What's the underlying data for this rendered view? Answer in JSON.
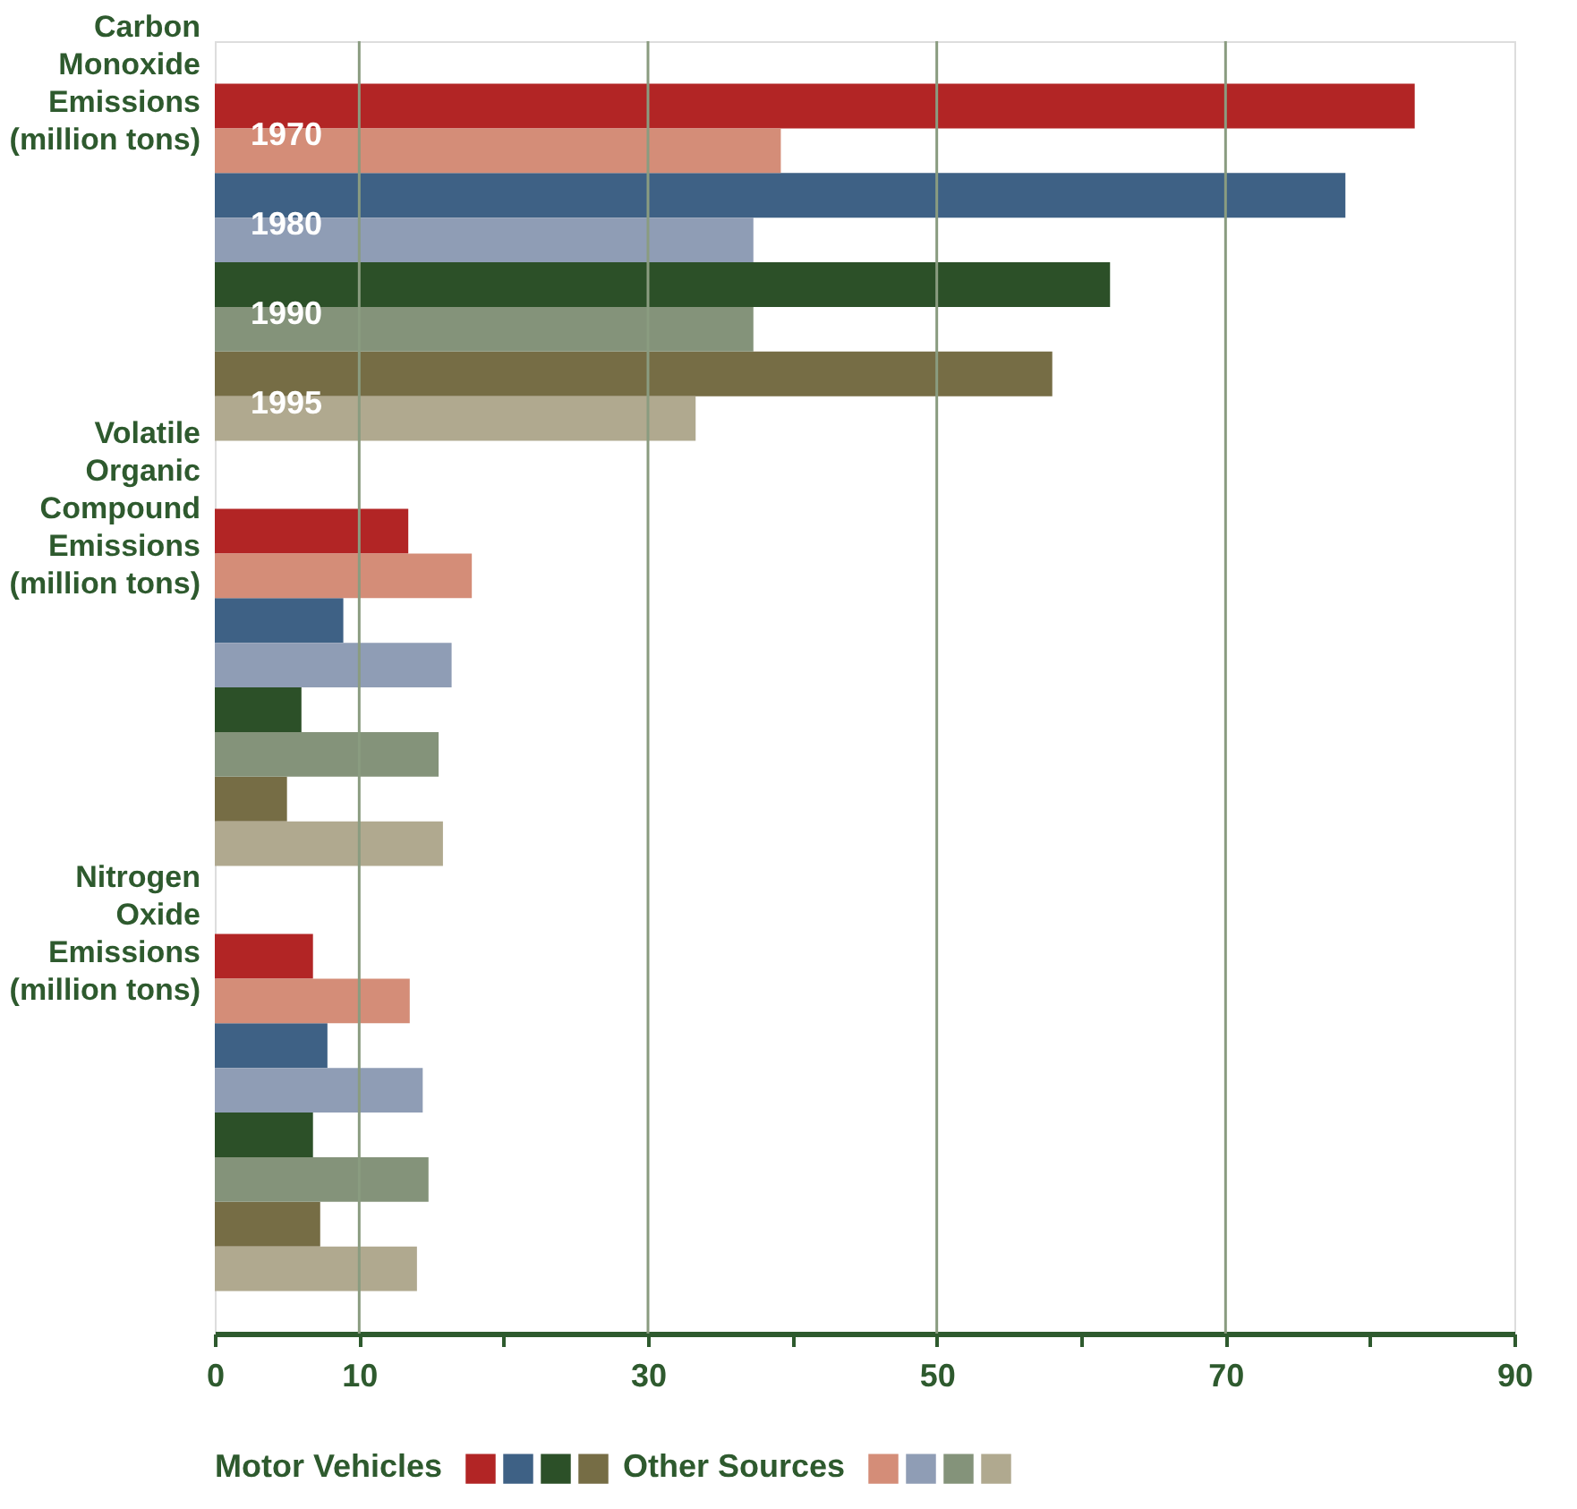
{
  "chart_data": {
    "type": "bar",
    "orientation": "horizontal",
    "categories": [
      "Carbon\nMonoxide\nEmissions\n(million tons)",
      "Volatile\nOrganic\nCompound\nEmissions\n(million tons)",
      "Nitrogen\nOxide\nEmissions\n(million tons)"
    ],
    "series": [
      {
        "name": "Motor Vehicles",
        "color": "#b22525",
        "values": [
          83.1,
          13.4,
          6.8
        ]
      },
      {
        "color": "#3e6185",
        "values": [
          78.3,
          8.9,
          7.8
        ]
      },
      {
        "color": "#2c5028",
        "values": [
          62.0,
          6.0,
          6.8
        ]
      },
      {
        "color": "#766d45",
        "values": [
          58.0,
          5.0,
          7.3
        ]
      },
      {
        "name": "Other Sources",
        "color": "#d48d78",
        "values": [
          39.2,
          17.8,
          13.5
        ]
      },
      {
        "color": "#8f9db5",
        "values": [
          37.3,
          16.4,
          14.4
        ]
      },
      {
        "color": "#84937a",
        "values": [
          37.3,
          15.5,
          14.8
        ]
      },
      {
        "color": "#b0a98f",
        "values": [
          33.3,
          15.8,
          14.0
        ]
      }
    ],
    "annotations": [
      "1970",
      "1980",
      "1990",
      "1995"
    ],
    "xlim": [
      0,
      90
    ],
    "xticks": [
      0,
      10,
      {
        "value": 20,
        "label": null
      },
      30,
      {
        "value": 40,
        "label": null
      },
      50,
      {
        "value": 60,
        "label": null
      },
      70,
      {
        "value": 80,
        "label": null
      },
      90
    ],
    "grid": "x",
    "legend": "bottom"
  }
}
